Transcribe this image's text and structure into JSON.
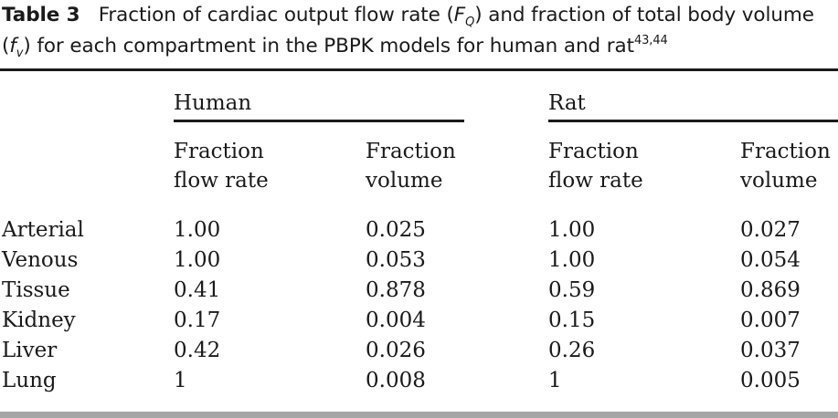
{
  "caption": {
    "label": "Table 3",
    "text_1": "Fraction of cardiac output flow rate (",
    "sym_F": "F",
    "sub_Q": "Q",
    "text_2": ") and fraction of total body volume (",
    "sym_f": "f",
    "sub_v": "v",
    "text_3": ") for each compartment in the PBPK models for human and rat",
    "refs": "43,44"
  },
  "table": {
    "groups": [
      "Human",
      "Rat"
    ],
    "col_headers": [
      {
        "line1": "Fraction",
        "line2": "flow rate"
      },
      {
        "line1": "Fraction",
        "line2": "volume"
      },
      {
        "line1": "Fraction",
        "line2": "flow rate"
      },
      {
        "line1": "Fraction",
        "line2": "volume"
      }
    ],
    "rows": [
      {
        "label": "Arterial",
        "cells": [
          "1.00",
          "0.025",
          "1.00",
          "0.027"
        ]
      },
      {
        "label": "Venous",
        "cells": [
          "1.00",
          "0.053",
          "1.00",
          "0.054"
        ]
      },
      {
        "label": "Tissue",
        "cells": [
          "0.41",
          "0.878",
          "0.59",
          "0.869"
        ]
      },
      {
        "label": "Kidney",
        "cells": [
          "0.17",
          "0.004",
          "0.15",
          "0.007"
        ]
      },
      {
        "label": "Liver",
        "cells": [
          "0.42",
          "0.026",
          "0.26",
          "0.037"
        ]
      },
      {
        "label": "Lung",
        "cells": [
          "1",
          "0.008",
          "1",
          "0.005"
        ]
      }
    ]
  }
}
